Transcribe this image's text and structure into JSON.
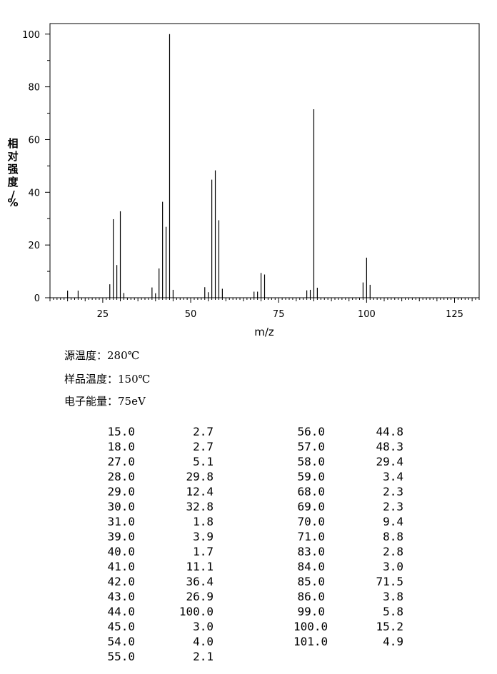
{
  "chart_data": {
    "type": "bar",
    "xlabel": "m/z",
    "ylabel": "相对强度/%",
    "xlim": [
      10,
      132
    ],
    "ylim": [
      0,
      104
    ],
    "xticks": [
      25,
      50,
      75,
      100,
      125
    ],
    "yticks": [
      0,
      20,
      40,
      60,
      80,
      100
    ],
    "grid": false,
    "peaks": [
      {
        "x": 15.0,
        "y": 2.7
      },
      {
        "x": 18.0,
        "y": 2.7
      },
      {
        "x": 27.0,
        "y": 5.1
      },
      {
        "x": 28.0,
        "y": 29.8
      },
      {
        "x": 29.0,
        "y": 12.4
      },
      {
        "x": 30.0,
        "y": 32.8
      },
      {
        "x": 31.0,
        "y": 1.8
      },
      {
        "x": 39.0,
        "y": 3.9
      },
      {
        "x": 40.0,
        "y": 1.7
      },
      {
        "x": 41.0,
        "y": 11.1
      },
      {
        "x": 42.0,
        "y": 36.4
      },
      {
        "x": 43.0,
        "y": 26.9
      },
      {
        "x": 44.0,
        "y": 100.0
      },
      {
        "x": 45.0,
        "y": 3.0
      },
      {
        "x": 54.0,
        "y": 4.0
      },
      {
        "x": 55.0,
        "y": 2.1
      },
      {
        "x": 56.0,
        "y": 44.8
      },
      {
        "x": 57.0,
        "y": 48.3
      },
      {
        "x": 58.0,
        "y": 29.4
      },
      {
        "x": 59.0,
        "y": 3.4
      },
      {
        "x": 68.0,
        "y": 2.3
      },
      {
        "x": 69.0,
        "y": 2.3
      },
      {
        "x": 70.0,
        "y": 9.4
      },
      {
        "x": 71.0,
        "y": 8.8
      },
      {
        "x": 83.0,
        "y": 2.8
      },
      {
        "x": 84.0,
        "y": 3.0
      },
      {
        "x": 85.0,
        "y": 71.5
      },
      {
        "x": 86.0,
        "y": 3.8
      },
      {
        "x": 99.0,
        "y": 5.8
      },
      {
        "x": 100.0,
        "y": 15.2
      },
      {
        "x": 101.0,
        "y": 4.9
      }
    ]
  },
  "conditions": [
    {
      "label": "源温度：",
      "value": "280℃"
    },
    {
      "label": "样品温度：",
      "value": "150℃"
    },
    {
      "label": "电子能量：",
      "value": "75eV"
    }
  ],
  "table": {
    "left": [
      [
        "15.0",
        "2.7"
      ],
      [
        "18.0",
        "2.7"
      ],
      [
        "27.0",
        "5.1"
      ],
      [
        "28.0",
        "29.8"
      ],
      [
        "29.0",
        "12.4"
      ],
      [
        "30.0",
        "32.8"
      ],
      [
        "31.0",
        "1.8"
      ],
      [
        "39.0",
        "3.9"
      ],
      [
        "40.0",
        "1.7"
      ],
      [
        "41.0",
        "11.1"
      ],
      [
        "42.0",
        "36.4"
      ],
      [
        "43.0",
        "26.9"
      ],
      [
        "44.0",
        "100.0"
      ],
      [
        "45.0",
        "3.0"
      ],
      [
        "54.0",
        "4.0"
      ],
      [
        "55.0",
        "2.1"
      ]
    ],
    "right": [
      [
        "56.0",
        "44.8"
      ],
      [
        "57.0",
        "48.3"
      ],
      [
        "58.0",
        "29.4"
      ],
      [
        "59.0",
        "3.4"
      ],
      [
        "68.0",
        "2.3"
      ],
      [
        "69.0",
        "2.3"
      ],
      [
        "70.0",
        "9.4"
      ],
      [
        "71.0",
        "8.8"
      ],
      [
        "83.0",
        "2.8"
      ],
      [
        "84.0",
        "3.0"
      ],
      [
        "85.0",
        "71.5"
      ],
      [
        "86.0",
        "3.8"
      ],
      [
        "99.0",
        "5.8"
      ],
      [
        "100.0",
        "15.2"
      ],
      [
        "101.0",
        "4.9"
      ]
    ]
  }
}
